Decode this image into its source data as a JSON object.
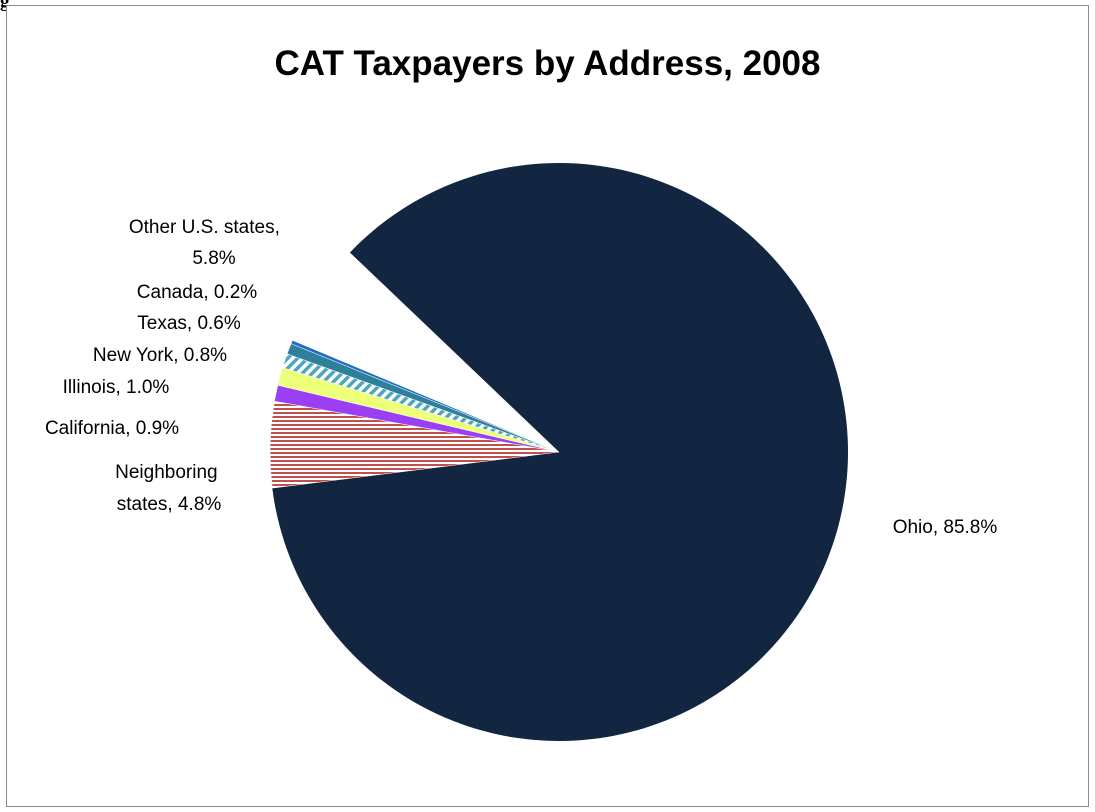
{
  "corner_text": "g",
  "chart_data": {
    "type": "pie",
    "title": "CAT Taxpayers by Address, 2008",
    "slices": [
      {
        "label": "Ohio",
        "value": 85.8,
        "display": "Ohio, 85.8%",
        "color": "#132641",
        "pattern": "solid"
      },
      {
        "label": "Neighboring states",
        "value": 4.8,
        "display": "Neighboring states, 4.8%",
        "color": "#c0504d",
        "pattern": "horizontal-lines"
      },
      {
        "label": "California",
        "value": 0.9,
        "display": "California, 0.9%",
        "color": "#9b3ff5",
        "pattern": "solid"
      },
      {
        "label": "Illinois",
        "value": 1.0,
        "display": "Illinois, 1.0%",
        "color": "#eeff7a",
        "pattern": "solid"
      },
      {
        "label": "New York",
        "value": 0.8,
        "display": "New York, 0.8%",
        "color": "#4aa6c2",
        "pattern": "diagonal-stripes"
      },
      {
        "label": "Texas",
        "value": 0.6,
        "display": "Texas, 0.6%",
        "color": "#2e7f9a",
        "pattern": "solid"
      },
      {
        "label": "Canada",
        "value": 0.2,
        "display": "Canada, 0.2%",
        "color": "#1f6fc5",
        "pattern": "solid"
      },
      {
        "label": "Other U.S. states",
        "value": 5.8,
        "display": "Other U.S. states, 5.8%",
        "color": "#ffffff",
        "pattern": "none"
      }
    ],
    "labels": {
      "ohio": [
        "Ohio, 85.8%"
      ],
      "neighboring": [
        "Neighboring",
        "states, 4.8%"
      ],
      "california": [
        "California, 0.9%"
      ],
      "illinois": [
        "Illinois, 1.0%"
      ],
      "new_york": [
        "New York, 0.8%"
      ],
      "texas": [
        "Texas, 0.6%"
      ],
      "canada": [
        "Canada, 0.2%"
      ],
      "other": [
        "Other U.S. states,",
        "5.8%"
      ]
    }
  }
}
